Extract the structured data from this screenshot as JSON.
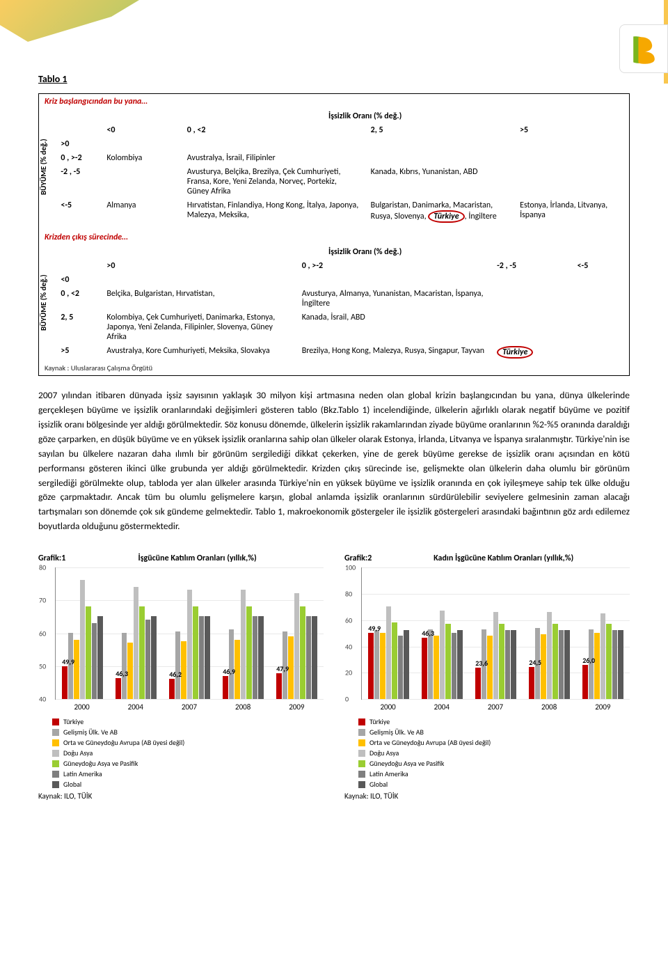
{
  "header": {
    "swoosh_color_1": "#f9c74f",
    "swoosh_color_2": "#a8c256",
    "logo_colors": {
      "left": "#7ab51d",
      "right": "#f6a800"
    }
  },
  "table_label": "Tablo 1",
  "table1": {
    "title": "Kriz başlangıcından bu yana…",
    "caption": "İşsizlik Oranı (% değ.)",
    "side_label": "BÜYÜME (% değ.)",
    "cols": [
      "<0",
      "0 , <2",
      "2, 5",
      ">5"
    ],
    "rows": [
      {
        "label": ">0",
        "cells": [
          "",
          "",
          "",
          ""
        ]
      },
      {
        "label": "0 , >-2",
        "cells": [
          "Kolombiya",
          "Avustralya, İsrail, Filipinler",
          "",
          ""
        ]
      },
      {
        "label": "-2 , -5",
        "cells": [
          "",
          "Avusturya, Belçika, Brezilya, Çek Cumhuriyeti, Fransa, Kore, Yeni Zelanda, Norveç, Portekiz, Güney Afrika",
          "Kanada, Kıbrıs, Yunanistan, ABD",
          ""
        ]
      },
      {
        "label": "<-5",
        "cells": [
          "Almanya",
          "Hırvatistan, Finlandiya, Hong Kong, İtalya, Japonya, Malezya, Meksika,",
          "Bulgaristan, Danimarka, Macaristan, Rusya, Slovenya, Türkiye, İngiltere",
          "Estonya, İrlanda, Litvanya, İspanya"
        ]
      }
    ],
    "circled_word": "Türkiye"
  },
  "table2": {
    "title": "Krizden çıkış sürecinde…",
    "caption": "İşsizlik Oranı (% değ.)",
    "side_label": "BÜYÜME (% değ.)",
    "cols": [
      ">0",
      "0 , >-2",
      "-2 , -5",
      "<-5"
    ],
    "rows": [
      {
        "label": "<0",
        "cells": [
          "",
          "",
          "",
          ""
        ]
      },
      {
        "label": "0 , <2",
        "cells": [
          "Belçika, Bulgaristan, Hırvatistan,",
          "Avusturya, Almanya, Yunanistan, Macaristan, İspanya, İngiltere",
          "",
          ""
        ]
      },
      {
        "label": "2, 5",
        "cells": [
          "Kolombiya, Çek Cumhuriyeti, Danimarka, Estonya, Japonya, Yeni Zelanda, Filipinler, Slovenya, Güney Afrika",
          "Kanada, İsrail, ABD",
          "",
          ""
        ]
      },
      {
        "label": ">5",
        "cells": [
          "Avustralya, Kore Cumhuriyeti, Meksika, Slovakya",
          "Brezilya, Hong Kong, Malezya, Rusya, Singapur, Tayvan",
          "Türkiye",
          ""
        ]
      }
    ],
    "circled_word": "Türkiye"
  },
  "table_footer": "Kaynak : Uluslararası Çalışma Örgütü",
  "paragraph": "2007 yılından itibaren dünyada işsiz sayısının yaklaşık 30 milyon kişi artmasına neden olan global krizin başlangıcından bu yana, dünya ülkelerinde gerçekleşen büyüme ve işsizlik oranlarındaki değişimleri gösteren tablo (Bkz.Tablo 1) incelendiğinde, ülkelerin ağırlıklı olarak negatif büyüme ve pozitif işsizlik oranı bölgesinde yer aldığı görülmektedir. Söz konusu dönemde, ülkelerin işsizlik rakamlarından ziyade büyüme oranlarının %2-%5 oranında daraldığı göze çarparken, en düşük büyüme ve en yüksek işsizlik oranlarına sahip olan ülkeler olarak Estonya, İrlanda, Litvanya ve İspanya sıralanmıştır. Türkiye'nin ise sayılan bu ülkelere nazaran daha ılımlı bir görünüm sergilediği dikkat çekerken, yine de gerek büyüme gerekse de işsizlik oranı açısından en kötü performansı gösteren ikinci ülke grubunda yer aldığı görülmektedir. Krizden çıkış sürecinde ise, gelişmekte olan ülkelerin daha olumlu bir görünüm sergilediği görülmekte olup, tabloda yer alan ülkeler arasında Türkiye'nin en yüksek büyüme ve işsizlik oranında en çok iyileşmeye sahip tek ülke olduğu göze çarpmaktadır. Ancak tüm bu olumlu gelişmelere karşın, global anlamda işsizlik oranlarının sürdürülebilir seviyelere gelmesinin zaman alacağı tartışmaları son dönemde çok sık gündeme gelmektedir. Tablo 1, makroekonomik göstergeler ile işsizlik göstergeleri arasındaki bağıntının göz ardı edilemez boyutlarda olduğunu göstermektedir.",
  "legend_items": [
    {
      "label": "Türkiye",
      "color": "#c00000"
    },
    {
      "label": "Gelişmiş Ülk. Ve AB",
      "color": "#a6a6a6"
    },
    {
      "label": "Orta ve Güneydoğu Avrupa (AB üyesi değil)",
      "color": "#ffc000"
    },
    {
      "label": "Doğu Asya",
      "color": "#bfbfbf"
    },
    {
      "label": "Güneydoğu Asya ve Pasifik",
      "color": "#9acd32"
    },
    {
      "label": "Latin Amerika",
      "color": "#7f7f7f"
    },
    {
      "label": "Global",
      "color": "#595959"
    }
  ],
  "chart1": {
    "g_label": "Grafik:1",
    "title": "İşgücüne Katılım Oranları (yıllık,%)",
    "type": "bar",
    "ylim": [
      40,
      80
    ],
    "ytick_step": 10,
    "categories": [
      "2000",
      "2004",
      "2007",
      "2008",
      "2009"
    ],
    "series": [
      {
        "color": "#c00000",
        "values": [
          49.9,
          46.3,
          46.2,
          46.9,
          47.9
        ]
      },
      {
        "color": "#a6a6a6",
        "values": [
          60,
          60,
          60.5,
          61,
          60.5
        ]
      },
      {
        "color": "#ffc000",
        "values": [
          58,
          57,
          57.5,
          58,
          59
        ]
      },
      {
        "color": "#bfbfbf",
        "values": [
          76,
          74,
          73,
          73,
          72
        ]
      },
      {
        "color": "#9acd32",
        "values": [
          68,
          68,
          68,
          68,
          68
        ]
      },
      {
        "color": "#7f7f7f",
        "values": [
          63,
          64,
          65,
          65,
          65
        ]
      },
      {
        "color": "#595959",
        "values": [
          65,
          65,
          65,
          65,
          65
        ]
      }
    ],
    "lead_labels": [
      "49,9",
      "46,3",
      "46,2",
      "46,9",
      "47,9"
    ]
  },
  "chart2": {
    "g_label": "Grafik:2",
    "title": "Kadın İşgücüne Katılım Oranları (yıllık,%)",
    "type": "bar",
    "ylim": [
      0,
      100
    ],
    "ytick_step": 20,
    "categories": [
      "2000",
      "2004",
      "2007",
      "2008",
      "2009"
    ],
    "series": [
      {
        "color": "#c00000",
        "values": [
          49.9,
          46.3,
          23.6,
          24.5,
          26.0
        ]
      },
      {
        "color": "#a6a6a6",
        "values": [
          52,
          53,
          53,
          54,
          53
        ]
      },
      {
        "color": "#ffc000",
        "values": [
          50,
          48,
          48,
          49,
          50
        ]
      },
      {
        "color": "#bfbfbf",
        "values": [
          70,
          67,
          66,
          66,
          65
        ]
      },
      {
        "color": "#9acd32",
        "values": [
          58,
          57,
          57,
          57,
          57
        ]
      },
      {
        "color": "#7f7f7f",
        "values": [
          48,
          50,
          52,
          52,
          52
        ]
      },
      {
        "color": "#595959",
        "values": [
          52,
          52,
          52,
          52,
          52
        ]
      }
    ],
    "lead_labels": [
      "49,9",
      "46,3",
      "23,6",
      "24,5",
      "26,0"
    ]
  },
  "source_text": "Kaynak: ILO, TÜİK",
  "colors": {
    "heading_red": "#c00000",
    "grid": "#e9e9e9",
    "axis": "#888888",
    "text": "#000000"
  }
}
